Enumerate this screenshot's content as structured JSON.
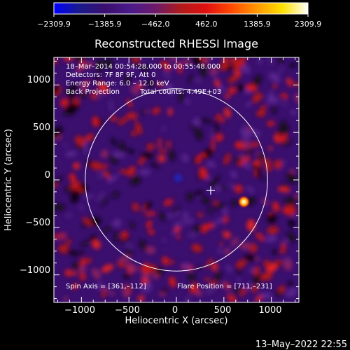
{
  "colorbar": {
    "tick_labels": [
      "−2309.9",
      "−1385.9",
      "−462.0",
      "462.0",
      "1385.9",
      "2309.9"
    ],
    "range": [
      -2309.9,
      2309.9
    ],
    "stops": [
      "#0000ff",
      "#1a1a8c",
      "#3a0f6e",
      "#4a1a8a",
      "#6b1a6b",
      "#b01a1a",
      "#e01010",
      "#ff4a00",
      "#ff9900",
      "#ffe000",
      "#ffffff"
    ]
  },
  "footer": {
    "date": "13–May–2022 22:55"
  },
  "chart_data": {
    "type": "heatmap",
    "title": "Reconstructed RHESSI Image",
    "xlabel": "Heliocentric X (arcsec)",
    "ylabel": "Heliocentric Y (arcsec)",
    "xlim": [
      -1290,
      1290
    ],
    "ylim": [
      -1290,
      1290
    ],
    "x_ticks": [
      -1000,
      -500,
      0,
      500,
      1000
    ],
    "y_ticks": [
      -1000,
      -500,
      0,
      500,
      1000
    ],
    "x_tick_labels": [
      "−1000",
      "−500",
      "0",
      "500",
      "1000"
    ],
    "y_tick_labels": [
      "−1000",
      "−500",
      "0",
      "500",
      "1000"
    ],
    "solar_limb_radius": 960,
    "cross_position": [
      361,
      -112
    ],
    "flare_position": [
      711,
      -231
    ],
    "annotations": {
      "time_range": "18–Mar–2014 00:54:28.000 to 00:55:48.000",
      "detectors": "Detectors: 7F 8F 9F, Att 0",
      "energy_range": "Energy Range: 6.0 – 12.0 keV",
      "method": "Back Projection",
      "total_counts": "Total counts: 4.49E+03",
      "spin_axis": "Spin Axis = [361,–112]",
      "flare_position": "Flare Position = [711,–231]"
    }
  }
}
